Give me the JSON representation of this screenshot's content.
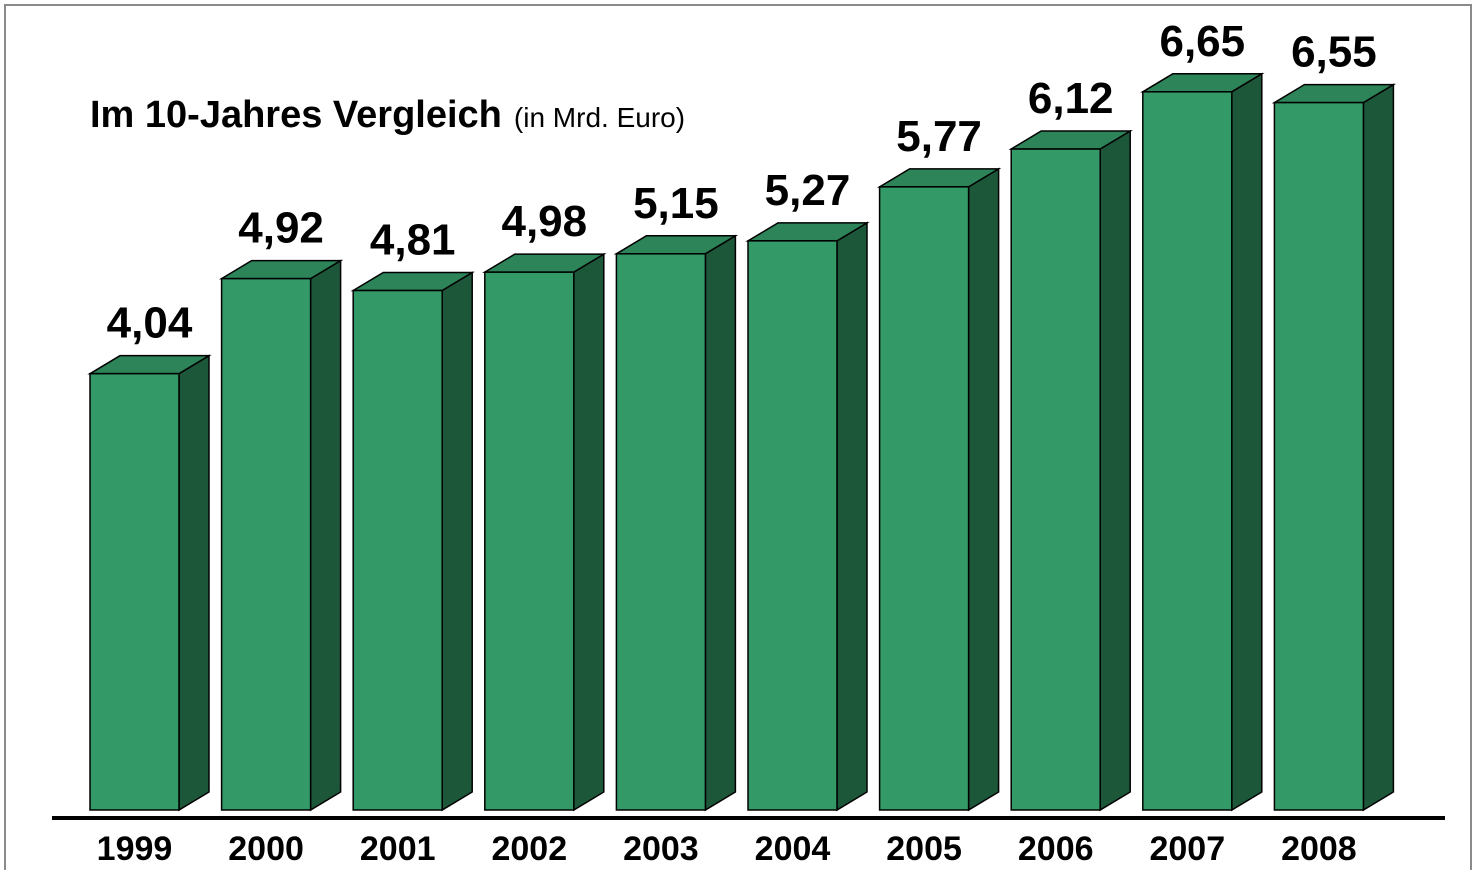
{
  "chart_data": {
    "type": "bar3d",
    "title": "Im 10-Jahres Vergleich",
    "subtitle": "(in Mrd. Euro)",
    "categories": [
      "1999",
      "2000",
      "2001",
      "2002",
      "2003",
      "2004",
      "2005",
      "2006",
      "2007",
      "2008"
    ],
    "values": [
      4.04,
      4.92,
      4.81,
      4.98,
      5.15,
      5.27,
      5.77,
      6.12,
      6.65,
      6.55
    ],
    "value_labels": [
      "4,04",
      "4,92",
      "4,81",
      "4,98",
      "5,15",
      "5,27",
      "5,77",
      "6,12",
      "6,65",
      "6,55"
    ],
    "color": "#339966"
  }
}
